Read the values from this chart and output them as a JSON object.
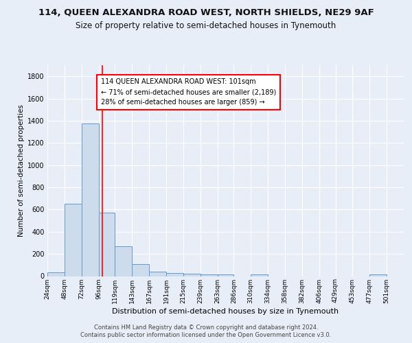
{
  "title1": "114, QUEEN ALEXANDRA ROAD WEST, NORTH SHIELDS, NE29 9AF",
  "title2": "Size of property relative to semi-detached houses in Tynemouth",
  "xlabel": "Distribution of semi-detached houses by size in Tynemouth",
  "ylabel": "Number of semi-detached properties",
  "footer_line1": "Contains HM Land Registry data © Crown copyright and database right 2024.",
  "footer_line2": "Contains public sector information licensed under the Open Government Licence v3.0.",
  "bin_labels": [
    "24sqm",
    "48sqm",
    "72sqm",
    "96sqm",
    "119sqm",
    "143sqm",
    "167sqm",
    "191sqm",
    "215sqm",
    "239sqm",
    "263sqm",
    "286sqm",
    "310sqm",
    "334sqm",
    "358sqm",
    "382sqm",
    "406sqm",
    "429sqm",
    "453sqm",
    "477sqm",
    "501sqm"
  ],
  "bin_edges": [
    24,
    48,
    72,
    96,
    119,
    143,
    167,
    191,
    215,
    239,
    263,
    286,
    310,
    334,
    358,
    382,
    406,
    429,
    453,
    477,
    501,
    525
  ],
  "bar_heights": [
    35,
    650,
    1375,
    570,
    270,
    110,
    38,
    30,
    22,
    18,
    17,
    0,
    17,
    0,
    0,
    0,
    0,
    0,
    0,
    18,
    0
  ],
  "bar_color": "#ccdcec",
  "bar_edge_color": "#6699cc",
  "red_line_x": 101,
  "ylim": [
    0,
    1900
  ],
  "yticks": [
    0,
    200,
    400,
    600,
    800,
    1000,
    1200,
    1400,
    1600,
    1800
  ],
  "annotation_text_line1": "114 QUEEN ALEXANDRA ROAD WEST: 101sqm",
  "annotation_text_line2": "← 71% of semi-detached houses are smaller (2,189)",
  "annotation_text_line3": "28% of semi-detached houses are larger (859) →",
  "background_color": "#e8eef8",
  "grid_color": "#ffffff"
}
